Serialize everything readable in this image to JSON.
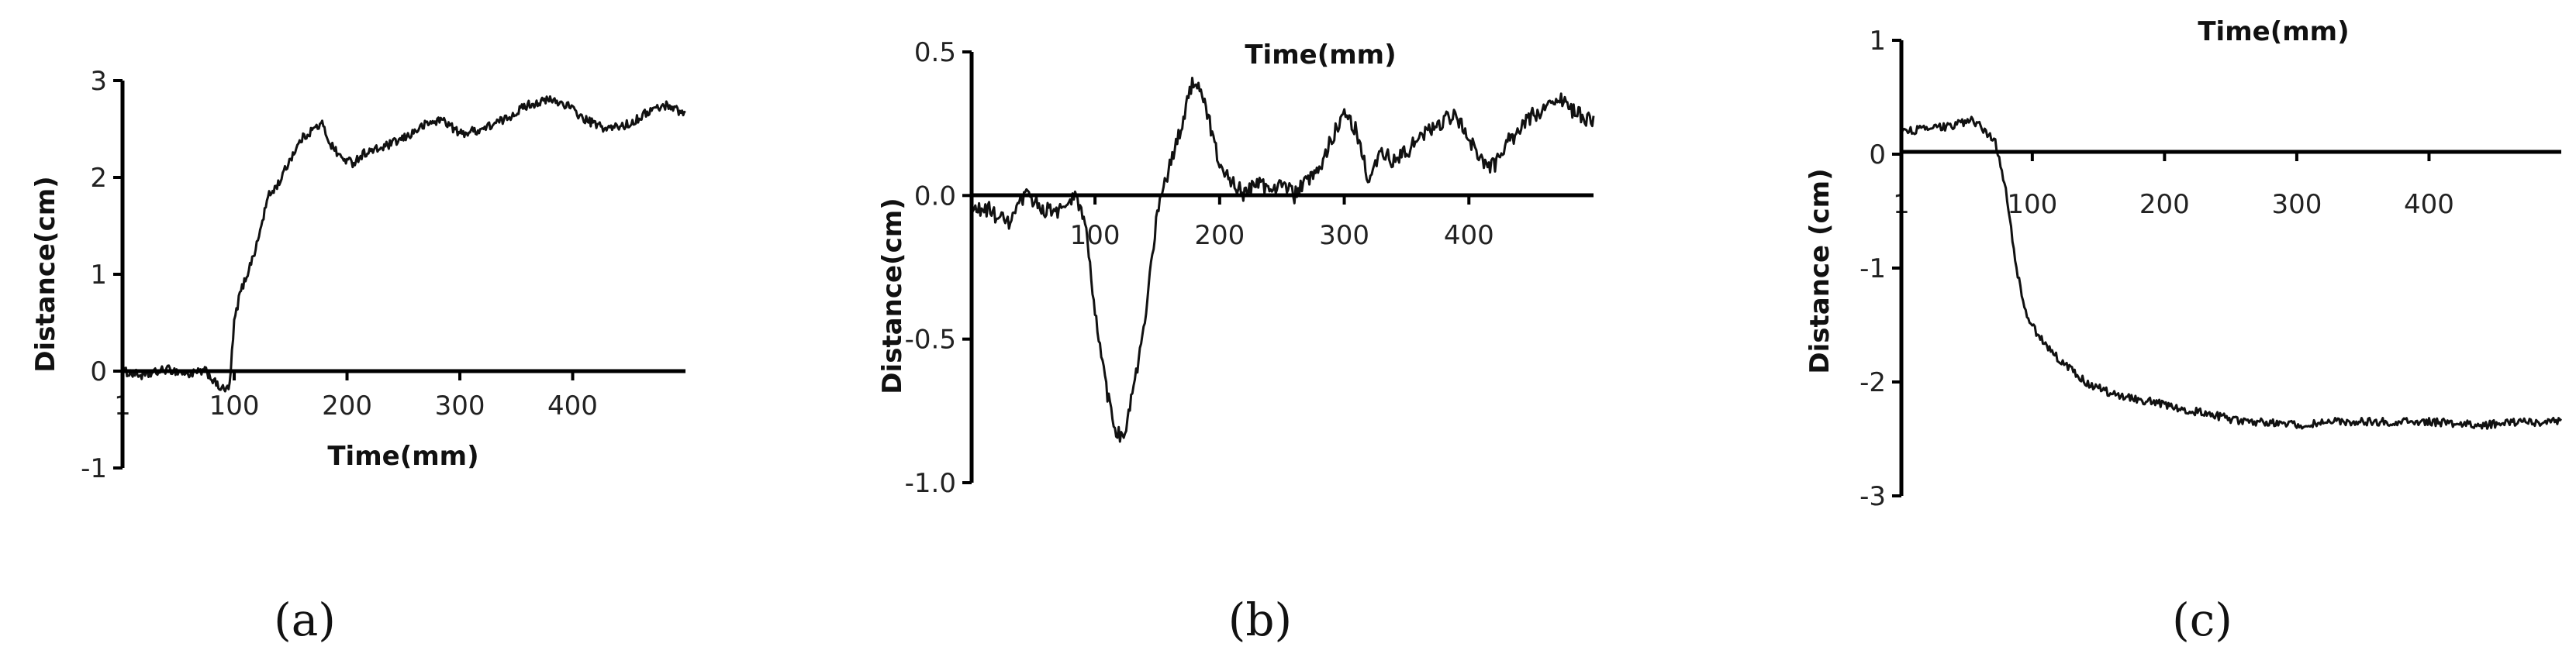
{
  "chart_data": [
    {
      "type": "line",
      "panel_label": "(a)",
      "xlabel": "Time(mm)",
      "ylabel": "Distance(cm)",
      "xlim": [
        1,
        500
      ],
      "ylim": [
        -1,
        3
      ],
      "x_ticks": [
        1,
        100,
        200,
        300,
        400
      ],
      "x_tick_labels": [
        "1",
        "100",
        "200",
        "300",
        "400"
      ],
      "y_ticks": [
        -1,
        0,
        1,
        2,
        3
      ],
      "y_tick_labels": [
        "-1",
        "0",
        "1",
        "2",
        "3"
      ],
      "noise": 0.045,
      "series": [
        {
          "x": [
            1,
            20,
            40,
            60,
            75,
            85,
            92,
            96,
            100,
            105,
            110,
            120,
            130,
            140,
            150,
            160,
            170,
            178,
            185,
            195,
            205,
            215,
            230,
            250,
            270,
            285,
            300,
            320,
            340,
            360,
            380,
            395,
            410,
            430,
            450,
            470,
            485,
            500
          ],
          "y": [
            0.0,
            -0.05,
            0.02,
            -0.03,
            0.0,
            -0.15,
            -0.2,
            -0.15,
            0.5,
            0.8,
            0.95,
            1.3,
            1.8,
            1.95,
            2.2,
            2.4,
            2.5,
            2.55,
            2.35,
            2.2,
            2.15,
            2.25,
            2.3,
            2.4,
            2.55,
            2.6,
            2.45,
            2.5,
            2.6,
            2.75,
            2.8,
            2.75,
            2.6,
            2.5,
            2.55,
            2.7,
            2.75,
            2.65
          ]
        }
      ]
    },
    {
      "type": "line",
      "panel_label": "(b)",
      "xlabel": "Time(mm)",
      "ylabel": "Distance(cm)",
      "xlim": [
        1,
        500
      ],
      "ylim": [
        -1.0,
        0.5
      ],
      "x_ticks": [
        100,
        200,
        300,
        400
      ],
      "x_tick_labels": [
        "100",
        "200",
        "300",
        "400"
      ],
      "y_ticks": [
        -1.0,
        -0.5,
        0.0,
        0.5
      ],
      "y_tick_labels": [
        "-1.0",
        "-0.5",
        "0.0",
        "0.5"
      ],
      "noise": 0.028,
      "series": [
        {
          "x": [
            1,
            15,
            30,
            45,
            60,
            75,
            85,
            92,
            100,
            108,
            115,
            122,
            130,
            140,
            150,
            160,
            170,
            178,
            185,
            192,
            200,
            210,
            220,
            230,
            240,
            250,
            260,
            270,
            280,
            290,
            300,
            310,
            320,
            330,
            340,
            350,
            360,
            375,
            390,
            400,
            410,
            420,
            430,
            440,
            450,
            460,
            470,
            480,
            490,
            500
          ],
          "y": [
            -0.05,
            -0.05,
            -0.1,
            0.0,
            -0.05,
            -0.05,
            0.0,
            -0.1,
            -0.4,
            -0.65,
            -0.8,
            -0.85,
            -0.7,
            -0.45,
            -0.05,
            0.1,
            0.25,
            0.4,
            0.38,
            0.25,
            0.1,
            0.05,
            0.0,
            0.05,
            0.02,
            0.05,
            0.0,
            0.05,
            0.08,
            0.2,
            0.3,
            0.22,
            0.05,
            0.15,
            0.12,
            0.15,
            0.2,
            0.25,
            0.28,
            0.2,
            0.12,
            0.1,
            0.18,
            0.22,
            0.28,
            0.3,
            0.35,
            0.3,
            0.28,
            0.25
          ]
        }
      ]
    },
    {
      "type": "line",
      "panel_label": "(c)",
      "xlabel": "Time(mm)",
      "ylabel": "Distance (cm)",
      "xlim": [
        1,
        500
      ],
      "ylim": [
        -3,
        1
      ],
      "x_ticks": [
        1,
        100,
        200,
        300,
        400
      ],
      "x_tick_labels": [
        "1",
        "100",
        "200",
        "300",
        "400"
      ],
      "y_ticks": [
        -3,
        -2,
        -1,
        0,
        1
      ],
      "y_tick_labels": [
        "-3",
        "-2",
        "-1",
        "0",
        "1"
      ],
      "noise": 0.035,
      "series": [
        {
          "x": [
            1,
            20,
            40,
            55,
            65,
            72,
            80,
            88,
            95,
            105,
            120,
            140,
            160,
            180,
            200,
            220,
            240,
            260,
            280,
            300,
            330,
            360,
            400,
            440,
            470,
            500
          ],
          "y": [
            0.2,
            0.22,
            0.25,
            0.3,
            0.2,
            0.1,
            -0.3,
            -1.0,
            -1.4,
            -1.6,
            -1.8,
            -2.0,
            -2.1,
            -2.15,
            -2.2,
            -2.25,
            -2.3,
            -2.35,
            -2.35,
            -2.38,
            -2.35,
            -2.35,
            -2.35,
            -2.38,
            -2.35,
            -2.35
          ]
        }
      ]
    }
  ]
}
